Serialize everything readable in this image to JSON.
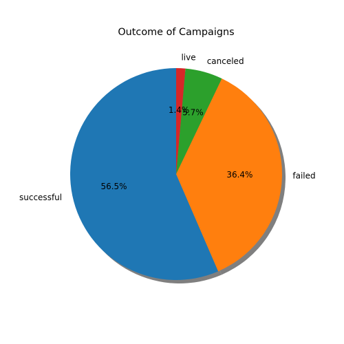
{
  "chart_data": {
    "type": "pie",
    "title": "Outcome of Campaigns",
    "categories": [
      "successful",
      "failed",
      "canceled",
      "live"
    ],
    "values": [
      56.5,
      36.4,
      5.7,
      1.4
    ],
    "percent_labels": [
      "56.5%",
      "36.4%",
      "5.7%",
      "1.4%"
    ],
    "colors": [
      "#1f77b4",
      "#ff7f0e",
      "#2ca02c",
      "#d62728"
    ],
    "start_angle_deg": 90,
    "direction": "counterclockwise",
    "shadow": true,
    "legend": false
  }
}
